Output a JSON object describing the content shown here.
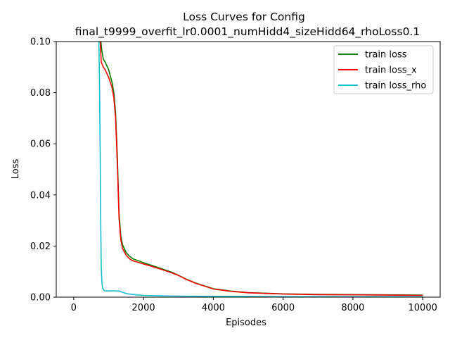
{
  "chart_data": {
    "type": "line",
    "title_line1": "Loss Curves for Config",
    "title_line2": "final_t9999_overfit_lr0.0001_numHidd4_sizeHidd64_rhoLoss0.1",
    "xlabel": "Episodes",
    "ylabel": "Loss",
    "xlim": [
      -500,
      10500
    ],
    "ylim": [
      0.0,
      0.1
    ],
    "xticks": [
      0,
      2000,
      4000,
      6000,
      8000,
      10000
    ],
    "xtick_labels": [
      "0",
      "2000",
      "4000",
      "6000",
      "8000",
      "10000"
    ],
    "yticks": [
      0.0,
      0.02,
      0.04,
      0.06,
      0.08,
      0.1
    ],
    "ytick_labels": [
      "0.00",
      "0.02",
      "0.04",
      "0.06",
      "0.08",
      "0.10"
    ],
    "grid": false,
    "legend_position": "top-right",
    "series": [
      {
        "name": "train loss",
        "color": "#008000",
        "x": [
          780,
          800,
          850,
          900,
          1000,
          1100,
          1150,
          1200,
          1250,
          1300,
          1350,
          1400,
          1500,
          1600,
          1700,
          1800,
          2000,
          2200,
          2500,
          2800,
          3000,
          3200,
          3500,
          4000,
          4500,
          5000,
          6000,
          7000,
          8000,
          9000,
          10000
        ],
        "y": [
          0.1,
          0.097,
          0.093,
          0.092,
          0.089,
          0.084,
          0.08,
          0.072,
          0.055,
          0.033,
          0.024,
          0.0205,
          0.0175,
          0.016,
          0.015,
          0.0145,
          0.0135,
          0.0126,
          0.0112,
          0.0098,
          0.0086,
          0.0072,
          0.0055,
          0.0033,
          0.0024,
          0.0018,
          0.0013,
          0.0011,
          0.001,
          0.0009,
          0.0008
        ]
      },
      {
        "name": "train loss_x",
        "color": "#ff0000",
        "x": [
          760,
          790,
          850,
          900,
          1000,
          1100,
          1150,
          1200,
          1250,
          1300,
          1350,
          1400,
          1500,
          1600,
          1700,
          1800,
          2000,
          2200,
          2500,
          2800,
          3000,
          3200,
          3500,
          4000,
          4500,
          5000,
          6000,
          7000,
          8000,
          9000,
          10000
        ],
        "y": [
          0.1,
          0.092,
          0.09,
          0.089,
          0.086,
          0.082,
          0.078,
          0.07,
          0.052,
          0.031,
          0.0225,
          0.019,
          0.0165,
          0.015,
          0.0142,
          0.0138,
          0.013,
          0.0122,
          0.0109,
          0.0096,
          0.0085,
          0.0071,
          0.0054,
          0.0032,
          0.0023,
          0.0017,
          0.0012,
          0.001,
          0.0009,
          0.0008,
          0.0007
        ]
      },
      {
        "name": "train loss_rho",
        "color": "#17becf",
        "x": [
          700,
          720,
          740,
          760,
          775,
          790,
          810,
          830,
          860,
          900,
          1000,
          1100,
          1200,
          1300,
          1400,
          1500,
          1600,
          1800,
          2000,
          2500,
          3000,
          4000,
          5000,
          6000,
          8000,
          10000
        ],
        "y": [
          0.1,
          0.1,
          0.085,
          0.055,
          0.028,
          0.012,
          0.0055,
          0.0035,
          0.0028,
          0.0025,
          0.0024,
          0.0025,
          0.0024,
          0.0024,
          0.0019,
          0.0015,
          0.0012,
          0.0009,
          0.0007,
          0.0005,
          0.0004,
          0.0003,
          0.0003,
          0.0002,
          0.0002,
          0.0002
        ]
      }
    ]
  }
}
